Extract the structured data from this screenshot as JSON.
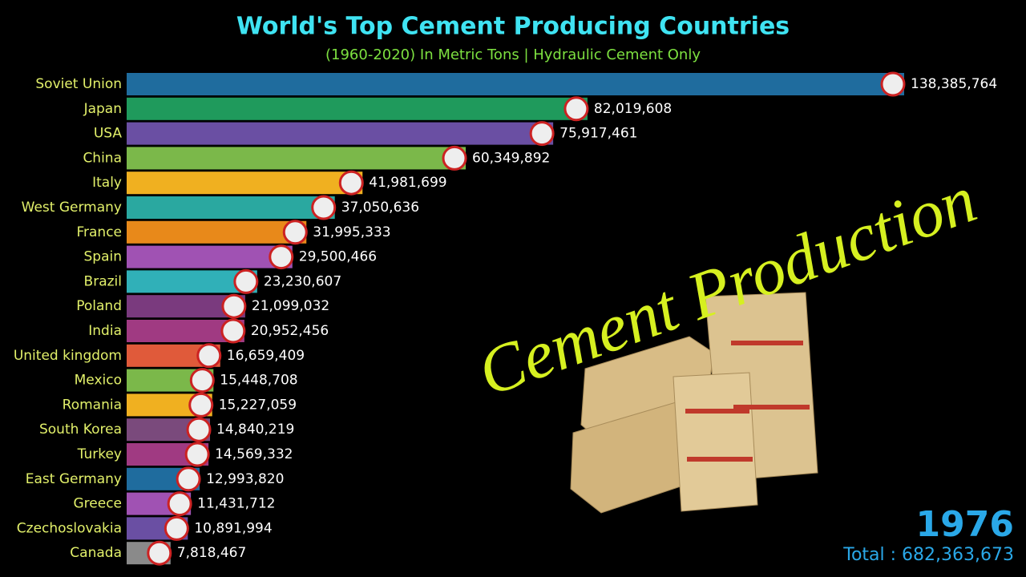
{
  "chart_data": {
    "type": "bar",
    "orientation": "horizontal",
    "title": "World's Top Cement Producing Countries",
    "subtitle": "(1960-2020) In Metric Tons | Hydraulic Cement Only",
    "overlay_text": "Cement Production",
    "year": "1976",
    "total": "Total : 682,363,673",
    "categories": [
      "Soviet Union",
      "Japan",
      "USA",
      "China",
      "Italy",
      "West Germany",
      "France",
      "Spain",
      "Brazil",
      "Poland",
      "India",
      "United kingdom",
      "Mexico",
      "Romania",
      "South Korea",
      "Turkey",
      "East Germany",
      "Greece",
      "Czechoslovakia",
      "Canada"
    ],
    "values": [
      138385764,
      82019608,
      75917461,
      60349892,
      41981699,
      37050636,
      31995333,
      29500466,
      23230607,
      21099032,
      20952456,
      16659409,
      15448708,
      15227059,
      14840219,
      14569332,
      12993820,
      11431712,
      10891994,
      7818467
    ],
    "value_labels": [
      "138,385,764",
      "82,019,608",
      "75,917,461",
      "60,349,892",
      "41,981,699",
      "37,050,636",
      "31,995,333",
      "29,500,466",
      "23,230,607",
      "21,099,032",
      "20,952,456",
      "16,659,409",
      "15,448,708",
      "15,227,059",
      "14,840,219",
      "14,569,332",
      "12,993,820",
      "11,431,712",
      "10,891,994",
      "7,818,467"
    ],
    "colors": [
      "#1f6c9e",
      "#1f9a5c",
      "#6a4fa3",
      "#7bb84a",
      "#f0b020",
      "#2aa8a0",
      "#e8891a",
      "#a052b3",
      "#30b0b8",
      "#7a3a7e",
      "#a03a82",
      "#e05a3a",
      "#7bb84a",
      "#f0b020",
      "#7a4a7c",
      "#a03a82",
      "#1f6c9e",
      "#a052b3",
      "#6a4fa3",
      "#8a8a8a"
    ]
  }
}
